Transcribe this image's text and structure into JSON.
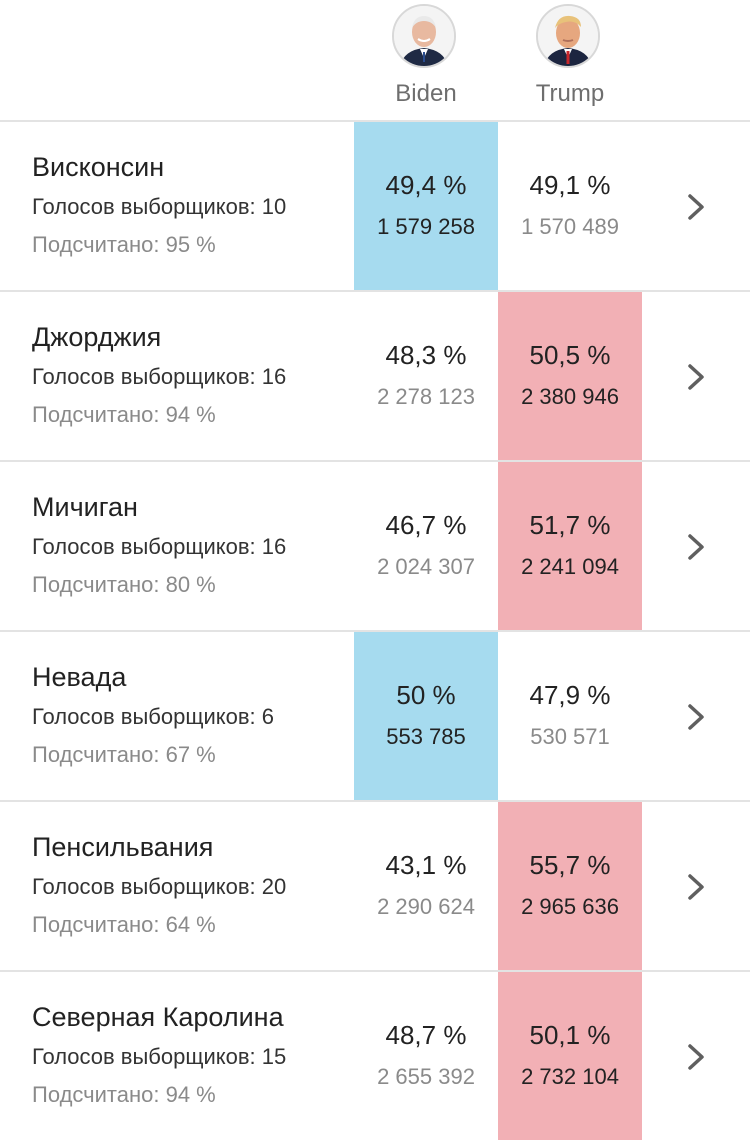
{
  "candidates": [
    {
      "name": "Biden",
      "avatar_icon": "biden-portrait"
    },
    {
      "name": "Trump",
      "avatar_icon": "trump-portrait"
    }
  ],
  "colors": {
    "biden_win": "#a6dbef",
    "trump_win": "#f2b0b5",
    "divider": "#e3e3e3"
  },
  "states": [
    {
      "name": "Висконсин",
      "electors": "Голосов выборщиков: 10",
      "counted": "Подсчитано: 95 %",
      "winner": "biden",
      "biden": {
        "pct": "49,4 %",
        "votes": "1 579 258"
      },
      "trump": {
        "pct": "49,1 %",
        "votes": "1 570 489"
      }
    },
    {
      "name": "Джорджия",
      "electors": "Голосов выборщиков: 16",
      "counted": "Подсчитано: 94 %",
      "winner": "trump",
      "biden": {
        "pct": "48,3 %",
        "votes": "2 278 123"
      },
      "trump": {
        "pct": "50,5 %",
        "votes": "2 380 946"
      }
    },
    {
      "name": "Мичиган",
      "electors": "Голосов выборщиков: 16",
      "counted": "Подсчитано: 80 %",
      "winner": "trump",
      "biden": {
        "pct": "46,7 %",
        "votes": "2 024 307"
      },
      "trump": {
        "pct": "51,7 %",
        "votes": "2 241 094"
      }
    },
    {
      "name": "Невада",
      "electors": "Голосов выборщиков: 6",
      "counted": "Подсчитано: 67 %",
      "winner": "biden",
      "biden": {
        "pct": "50 %",
        "votes": "553 785"
      },
      "trump": {
        "pct": "47,9 %",
        "votes": "530 571"
      }
    },
    {
      "name": "Пенсильвания",
      "electors": "Голосов выборщиков: 20",
      "counted": "Подсчитано: 64 %",
      "winner": "trump",
      "biden": {
        "pct": "43,1 %",
        "votes": "2 290 624"
      },
      "trump": {
        "pct": "55,7 %",
        "votes": "2 965 636"
      }
    },
    {
      "name": "Северная Каролина",
      "electors": "Голосов выборщиков: 15",
      "counted": "Подсчитано: 94 %",
      "winner": "trump",
      "biden": {
        "pct": "48,7 %",
        "votes": "2 655 392"
      },
      "trump": {
        "pct": "50,1 %",
        "votes": "2 732 104"
      }
    }
  ]
}
